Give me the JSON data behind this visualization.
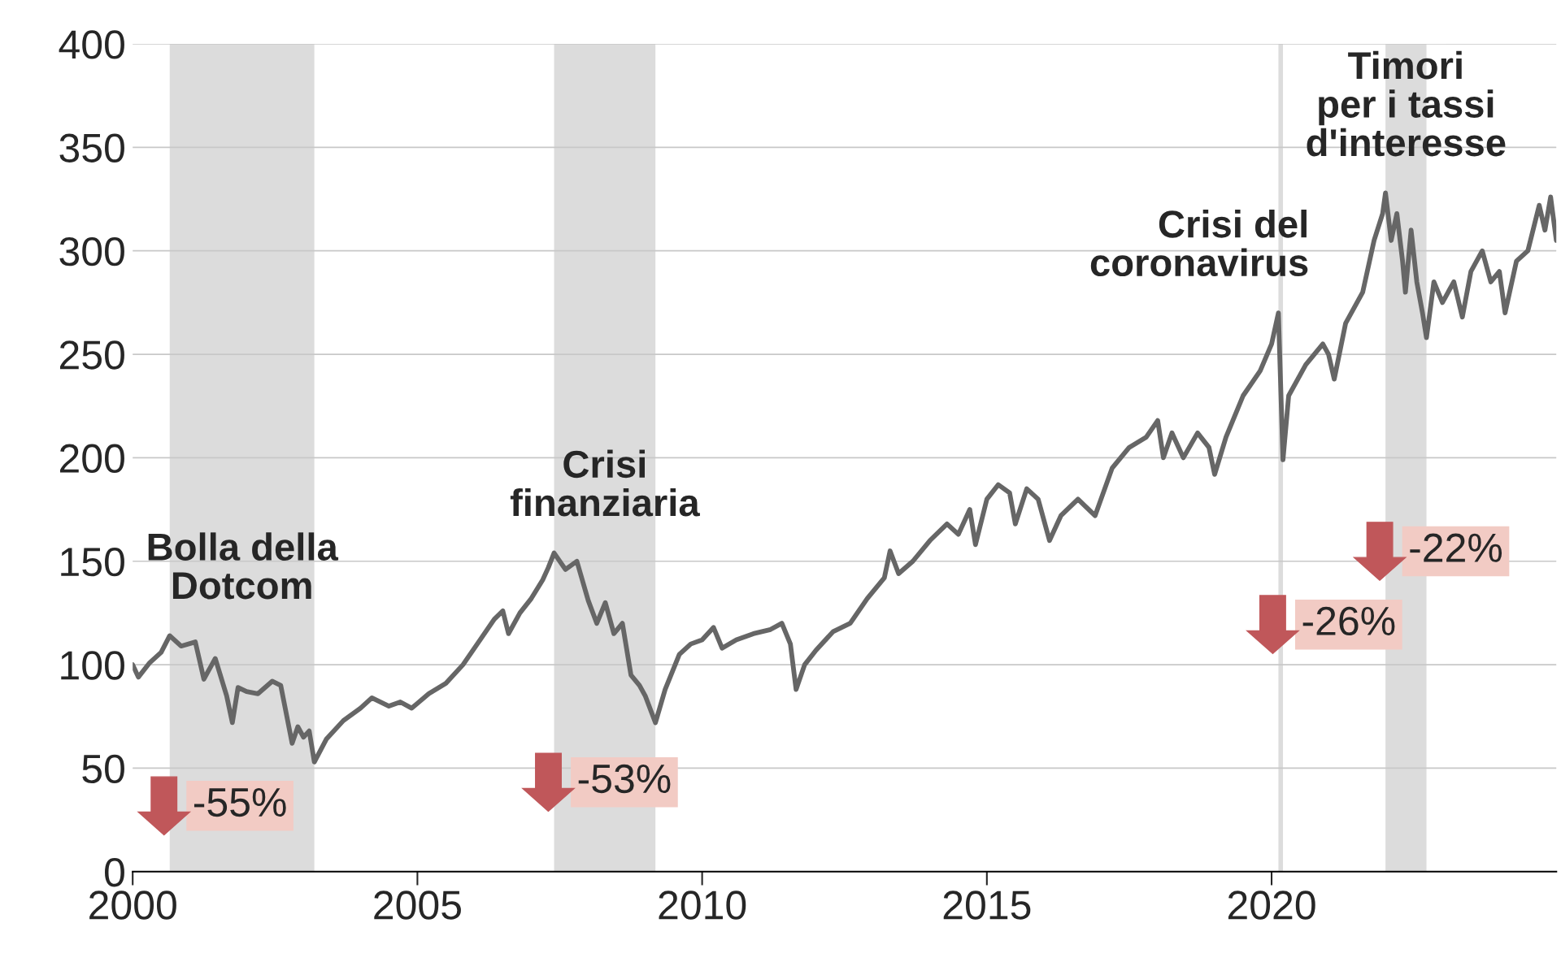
{
  "chart_data": {
    "type": "line",
    "x": [
      2000.0,
      2000.1,
      2000.3,
      2000.5,
      2000.65,
      2000.85,
      2001.1,
      2001.25,
      2001.45,
      2001.65,
      2001.75,
      2001.85,
      2002.0,
      2002.2,
      2002.45,
      2002.6,
      2002.7,
      2002.8,
      2002.9,
      2003.0,
      2003.1,
      2003.19,
      2003.4,
      2003.7,
      2004.0,
      2004.2,
      2004.5,
      2004.7,
      2004.9,
      2005.2,
      2005.5,
      2005.8,
      2006.1,
      2006.35,
      2006.5,
      2006.6,
      2006.8,
      2007.0,
      2007.2,
      2007.3,
      2007.4,
      2007.6,
      2007.8,
      2008.0,
      2008.15,
      2008.3,
      2008.45,
      2008.6,
      2008.75,
      2008.9,
      2009.0,
      2009.18,
      2009.35,
      2009.6,
      2009.8,
      2010.0,
      2010.2,
      2010.35,
      2010.6,
      2010.9,
      2011.2,
      2011.4,
      2011.55,
      2011.65,
      2011.8,
      2012.0,
      2012.3,
      2012.6,
      2012.9,
      2013.2,
      2013.3,
      2013.45,
      2013.7,
      2014.0,
      2014.3,
      2014.5,
      2014.7,
      2014.8,
      2015.0,
      2015.2,
      2015.4,
      2015.5,
      2015.7,
      2015.9,
      2016.1,
      2016.3,
      2016.6,
      2016.9,
      2017.2,
      2017.5,
      2017.8,
      2018.0,
      2018.1,
      2018.25,
      2018.45,
      2018.7,
      2018.9,
      2019.0,
      2019.2,
      2019.5,
      2019.8,
      2020.0,
      2020.12,
      2020.2,
      2020.3,
      2020.6,
      2020.9,
      2021.0,
      2021.1,
      2021.3,
      2021.6,
      2021.8,
      2021.95,
      2022.0,
      2022.1,
      2022.2,
      2022.3,
      2022.35,
      2022.45,
      2022.55,
      2022.65,
      2022.72,
      2022.85,
      2023.0,
      2023.2,
      2023.35,
      2023.5,
      2023.7,
      2023.85,
      2024.0,
      2024.1,
      2024.3,
      2024.5,
      2024.7,
      2024.8,
      2024.9,
      2025.0
    ],
    "series": [
      {
        "color": "#666666",
        "values": [
          100,
          94,
          101,
          106,
          114,
          109,
          111,
          93,
          103,
          85,
          72,
          89,
          87,
          86,
          92,
          90,
          76,
          62,
          70,
          65,
          68,
          53,
          64,
          73,
          79,
          84,
          80,
          82,
          79,
          86,
          91,
          100,
          112,
          122,
          126,
          115,
          125,
          132,
          141,
          147,
          154,
          146,
          150,
          131,
          120,
          130,
          115,
          120,
          95,
          90,
          85,
          72,
          88,
          105,
          110,
          112,
          118,
          108,
          112,
          115,
          117,
          120,
          110,
          88,
          100,
          107,
          116,
          120,
          132,
          142,
          155,
          144,
          150,
          160,
          168,
          163,
          175,
          158,
          180,
          187,
          183,
          168,
          185,
          180,
          160,
          172,
          180,
          172,
          195,
          205,
          210,
          218,
          200,
          212,
          200,
          212,
          205,
          192,
          210,
          230,
          242,
          255,
          270,
          199,
          230,
          245,
          255,
          250,
          238,
          265,
          280,
          305,
          318,
          328,
          305,
          318,
          295,
          280,
          310,
          285,
          270,
          258,
          285,
          275,
          285,
          268,
          290,
          300,
          285,
          290,
          270,
          295,
          300,
          322,
          310,
          326,
          305
        ]
      }
    ],
    "xlim": [
      2000,
      2025
    ],
    "xticks": [
      2000,
      2005,
      2010,
      2015,
      2020
    ],
    "ylim": [
      0,
      400
    ],
    "yticks": [
      0,
      50,
      100,
      150,
      200,
      250,
      300,
      350,
      400
    ],
    "grid": "y",
    "legend": false,
    "bands": [
      {
        "axis": "x",
        "from": 2000.65,
        "to": 2003.19,
        "color": "#dcdcdc"
      },
      {
        "axis": "x",
        "from": 2007.4,
        "to": 2009.18,
        "color": "#dcdcdc"
      },
      {
        "axis": "x",
        "from": 2020.12,
        "to": 2020.2,
        "color": "#dcdcdc"
      },
      {
        "axis": "x",
        "from": 2022.0,
        "to": 2022.72,
        "color": "#dcdcdc"
      }
    ],
    "annotations": [
      "Bolla della\nDotcom",
      "Crisi\nfinanziaria",
      "Crisi del\ncoronavirus",
      "Timori\nper i tassi\nd'interesse",
      "-55%",
      "-53%",
      "-26%",
      "-22%"
    ]
  }
}
